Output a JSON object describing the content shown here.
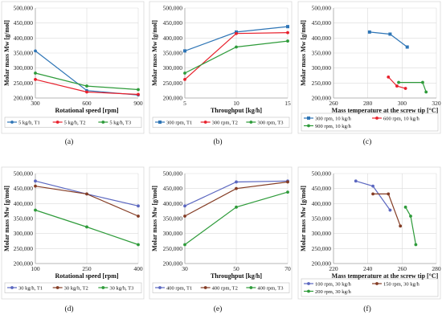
{
  "colors": {
    "blue": "#2E75B6",
    "red": "#E8202C",
    "green": "#2E9B3A",
    "brown": "#843C24",
    "purple": "#5B67C0"
  },
  "chart_data": [
    {
      "id": "a",
      "panel_label": "(a)",
      "type": "line",
      "xlabel": "Rotational speed [rpm]",
      "ylabel": "Molar mass Mw [g/mol]",
      "xlim": [
        300,
        900
      ],
      "xticks": [
        300,
        600,
        900
      ],
      "ylim": [
        200000,
        500000
      ],
      "yticks": [
        "200,000",
        "250,000",
        "300,000",
        "350,000",
        "400,000",
        "450,000",
        "500,000"
      ],
      "legend_position": "bottom",
      "series": [
        {
          "name": "5 kg/h, T1",
          "color": "blue",
          "marker": "circle",
          "x": [
            300,
            600,
            900
          ],
          "y": [
            357000,
            225000,
            210000
          ]
        },
        {
          "name": "5 kg/h, T2",
          "color": "red",
          "marker": "circle",
          "x": [
            300,
            600,
            900
          ],
          "y": [
            262000,
            220000,
            212000
          ]
        },
        {
          "name": "5 kg/h, T3",
          "color": "green",
          "marker": "circle",
          "x": [
            300,
            600,
            900
          ],
          "y": [
            283000,
            240000,
            228000
          ]
        }
      ]
    },
    {
      "id": "b",
      "panel_label": "(b)",
      "type": "line",
      "xlabel": "Throughput [kg/h]",
      "ylabel": "Molar mass Mw [g/mol]",
      "xlim": [
        5,
        15
      ],
      "xticks": [
        5,
        10,
        15
      ],
      "ylim": [
        200000,
        500000
      ],
      "yticks": [
        "200,000",
        "250,000",
        "300,000",
        "350,000",
        "400,000",
        "450,000",
        "500,000"
      ],
      "legend_position": "bottom",
      "series": [
        {
          "name": "300 rpm, T1",
          "color": "blue",
          "marker": "square",
          "x": [
            5,
            10,
            15
          ],
          "y": [
            357000,
            420000,
            438000
          ]
        },
        {
          "name": "300 rpm, T2",
          "color": "red",
          "marker": "circle",
          "x": [
            5,
            10,
            15
          ],
          "y": [
            262000,
            415000,
            418000
          ]
        },
        {
          "name": "300 rpm, T3",
          "color": "green",
          "marker": "circle",
          "x": [
            5,
            10,
            15
          ],
          "y": [
            283000,
            370000,
            390000
          ]
        }
      ]
    },
    {
      "id": "c",
      "panel_label": "(c)",
      "type": "line",
      "xlabel": "Mass temperature at the screw tip [°C]",
      "ylabel": "Molar mass Mw [g/mol]",
      "xlim": [
        260,
        320
      ],
      "xticks": [
        260,
        280,
        300,
        320
      ],
      "ylim": [
        200000,
        500000
      ],
      "yticks": [
        "200,000",
        "250,000",
        "300,000",
        "350,000",
        "400,000",
        "450,000",
        "500,000"
      ],
      "legend_position": "bottom",
      "series": [
        {
          "name": "300 rpm, 10 kg/h",
          "color": "blue",
          "marker": "square",
          "x": [
            281,
            293,
            303
          ],
          "y": [
            420000,
            413000,
            370000
          ]
        },
        {
          "name": "600 rpm, 10 kg/h",
          "color": "red",
          "marker": "circle",
          "x": [
            292,
            297,
            302
          ],
          "y": [
            270000,
            240000,
            232000
          ]
        },
        {
          "name": "900 rpm, 10 kg/h",
          "color": "green",
          "marker": "circle",
          "x": [
            298,
            312,
            314
          ],
          "y": [
            252000,
            252000,
            220000
          ]
        }
      ]
    },
    {
      "id": "d",
      "panel_label": "(d)",
      "type": "line",
      "xlabel": "Rotational speed [rpm]",
      "ylabel": "Molar mass Mw [g/mol]",
      "xlim": [
        100,
        400
      ],
      "xticks": [
        100,
        250,
        400
      ],
      "ylim": [
        200000,
        500000
      ],
      "yticks": [
        "200,000",
        "250,000",
        "300,000",
        "350,000",
        "400,000",
        "450,000",
        "500,000"
      ],
      "legend_position": "bottom",
      "series": [
        {
          "name": "30 kg/h, T1",
          "color": "purple",
          "marker": "circle",
          "x": [
            100,
            250,
            400
          ],
          "y": [
            475000,
            432000,
            392000
          ]
        },
        {
          "name": "30 kg/h, T2",
          "color": "brown",
          "marker": "circle",
          "x": [
            100,
            250,
            400
          ],
          "y": [
            458000,
            432000,
            358000
          ]
        },
        {
          "name": "30 kg/h, T3",
          "color": "green",
          "marker": "circle",
          "x": [
            100,
            250,
            400
          ],
          "y": [
            378000,
            322000,
            263000
          ]
        }
      ]
    },
    {
      "id": "e",
      "panel_label": "(e)",
      "type": "line",
      "xlabel": "Throughput [kg/h]",
      "ylabel": "Molar mass Mw [g/mol]",
      "xlim": [
        30,
        70
      ],
      "xticks": [
        30,
        50,
        70
      ],
      "ylim": [
        200000,
        500000
      ],
      "yticks": [
        "200,000",
        "250,000",
        "300,000",
        "350,000",
        "400,000",
        "450,000",
        "500,000"
      ],
      "legend_position": "bottom",
      "series": [
        {
          "name": "400 rpm, T1",
          "color": "purple",
          "marker": "circle",
          "x": [
            30,
            50,
            70
          ],
          "y": [
            392000,
            472000,
            475000
          ]
        },
        {
          "name": "400 rpm, T2",
          "color": "brown",
          "marker": "circle",
          "x": [
            30,
            50,
            70
          ],
          "y": [
            358000,
            450000,
            472000
          ]
        },
        {
          "name": "400 rpm, T3",
          "color": "green",
          "marker": "circle",
          "x": [
            30,
            50,
            70
          ],
          "y": [
            263000,
            388000,
            438000
          ]
        }
      ]
    },
    {
      "id": "f",
      "panel_label": "(f)",
      "type": "line",
      "xlabel": "Mass temperature at the screw tip [°C]",
      "ylabel": "Molar mass Mw [g/mol]",
      "xlim": [
        220,
        280
      ],
      "xticks": [
        220,
        240,
        260,
        280
      ],
      "ylim": [
        200000,
        500000
      ],
      "yticks": [
        "200,000",
        "250,000",
        "300,000",
        "350,000",
        "400,000",
        "450,000",
        "500,000"
      ],
      "legend_position": "bottom",
      "series": [
        {
          "name": "100 rpm, 30 kg/h",
          "color": "purple",
          "marker": "circle",
          "x": [
            233,
            243,
            253
          ],
          "y": [
            475000,
            458000,
            378000
          ]
        },
        {
          "name": "150 rpm, 30 kg/h",
          "color": "brown",
          "marker": "circle",
          "x": [
            243,
            252,
            259
          ],
          "y": [
            432000,
            432000,
            325000
          ]
        },
        {
          "name": "200 rpm, 30 kg/h",
          "color": "green",
          "marker": "circle",
          "x": [
            262,
            265,
            268
          ],
          "y": [
            388000,
            358000,
            263000
          ]
        }
      ]
    }
  ]
}
